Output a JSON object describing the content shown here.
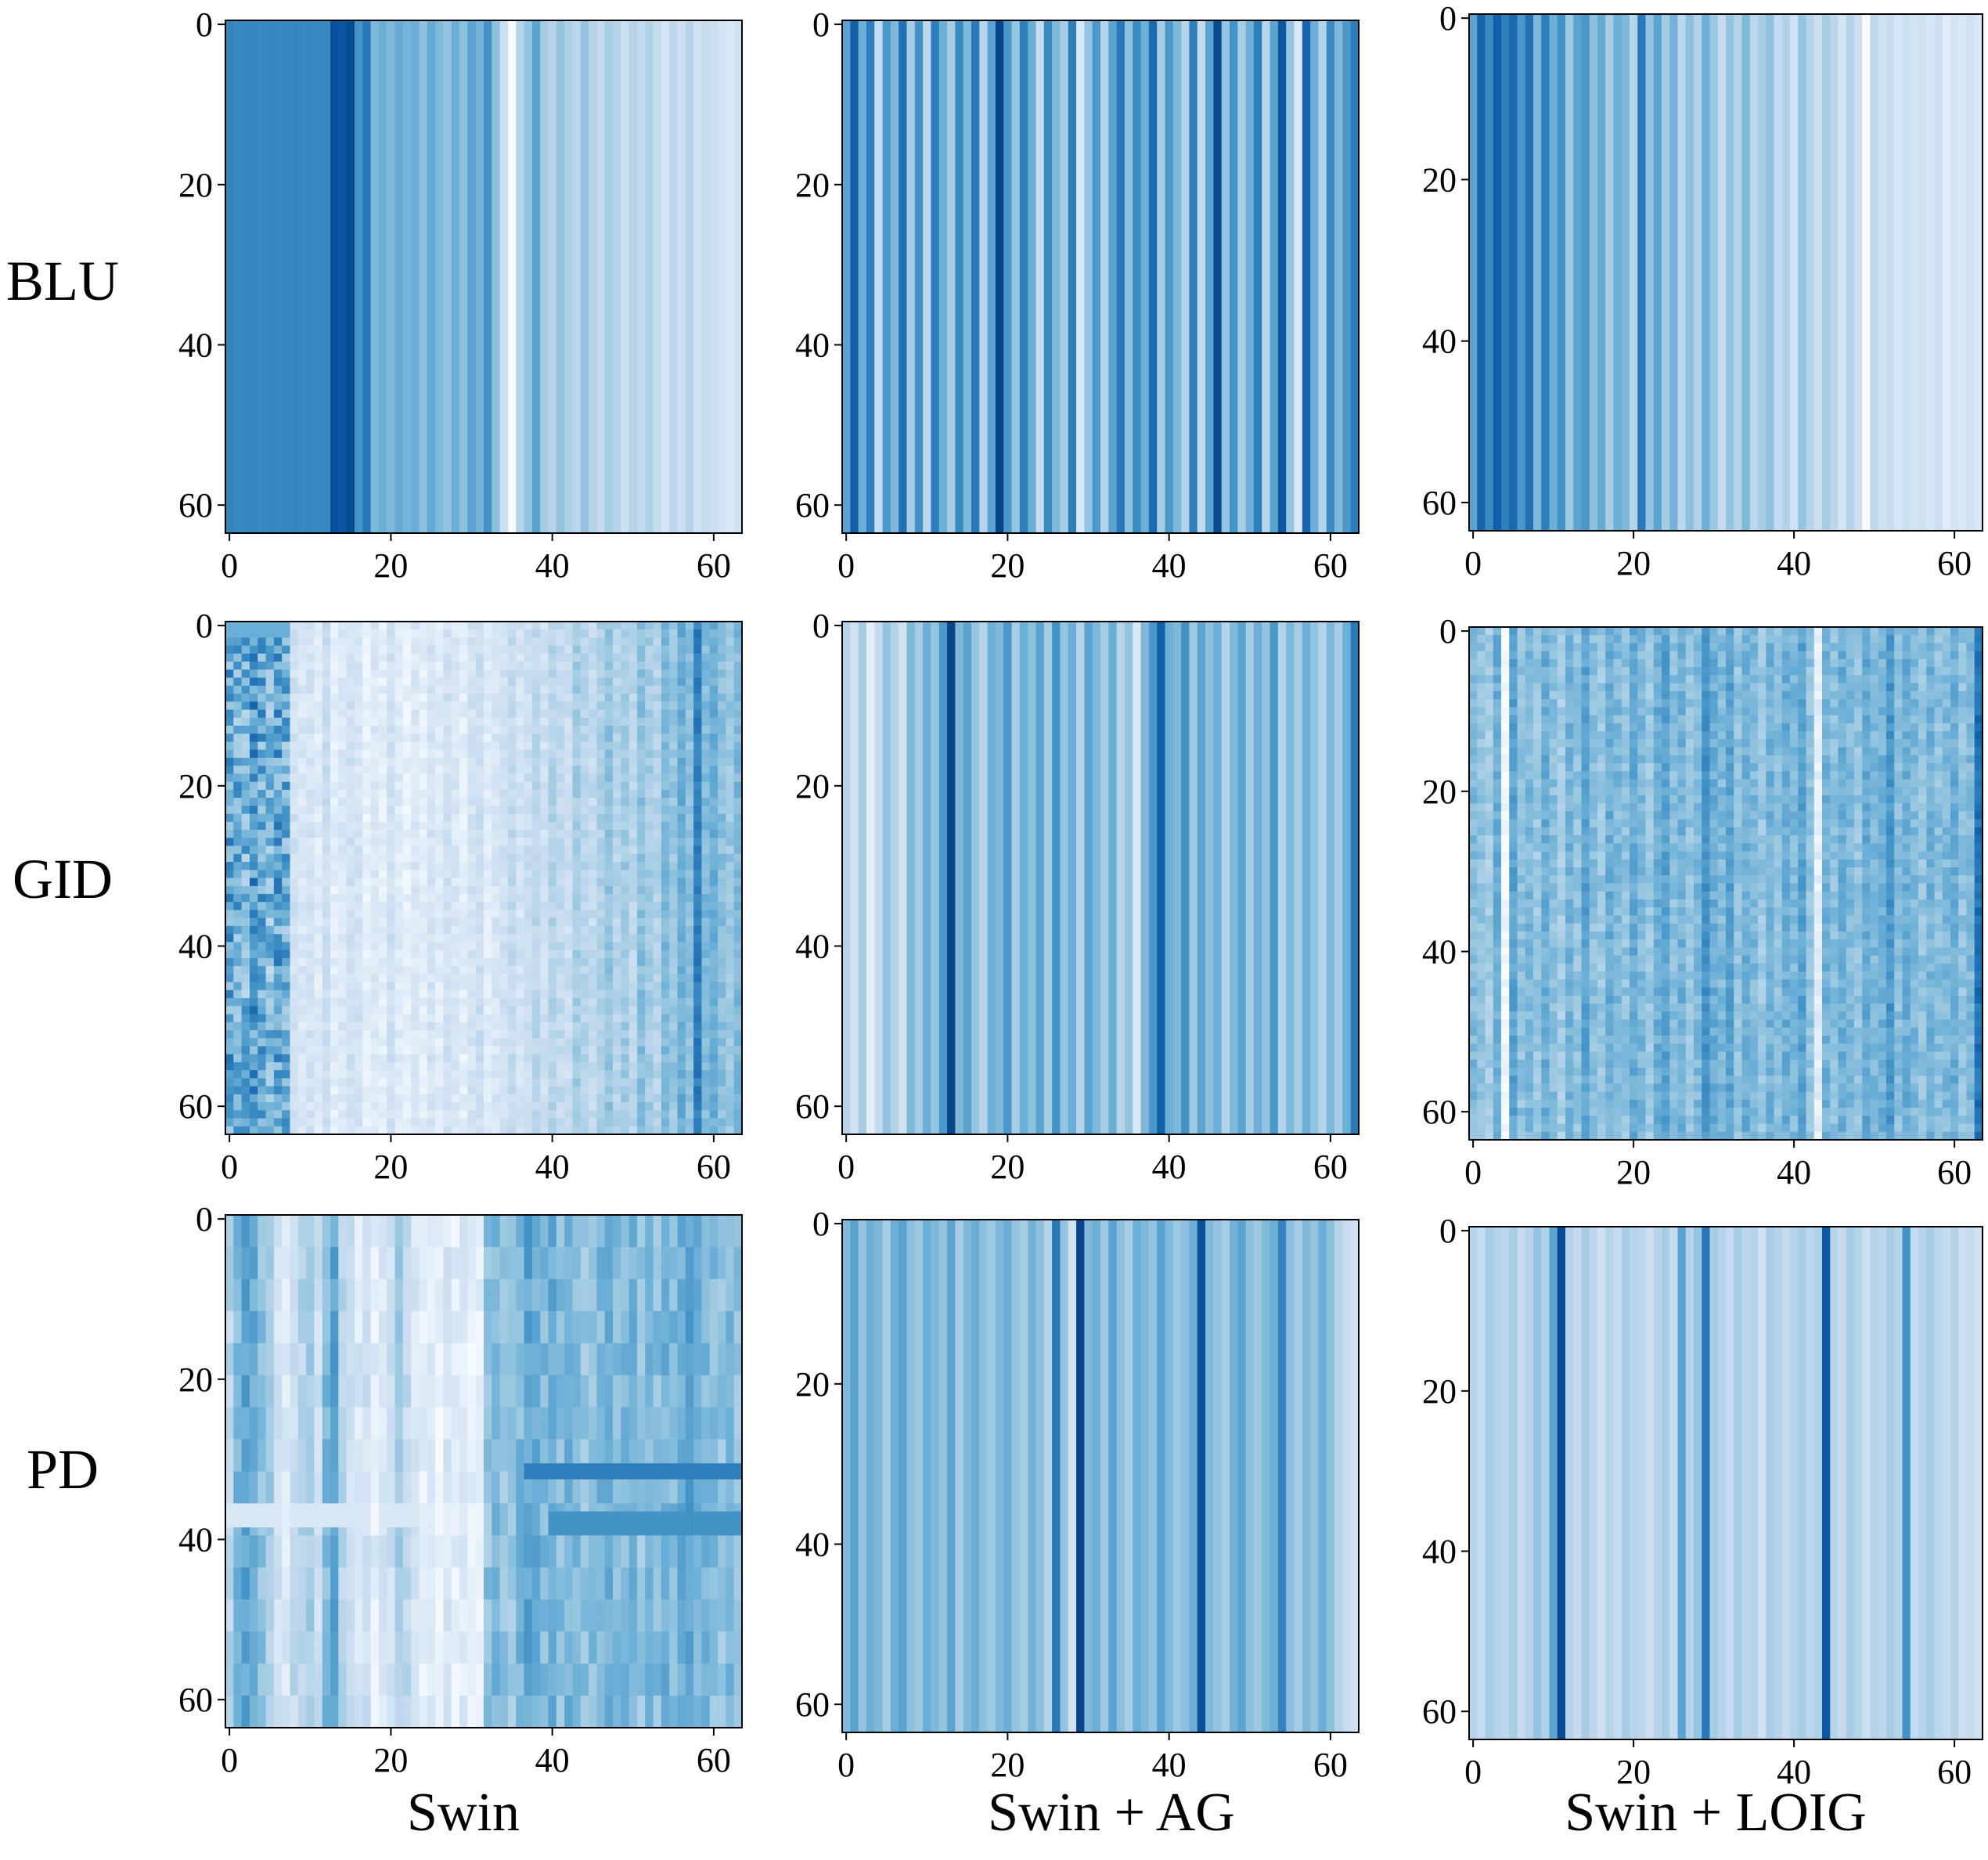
{
  "figure": {
    "row_labels": [
      "BLU",
      "GID",
      "PD"
    ],
    "col_labels": [
      "Swin",
      "Swin + AG",
      "Swin + LOIG"
    ],
    "colormap": [
      "#f7fbff",
      "#deebf7",
      "#c6dbef",
      "#9ecae1",
      "#6baed6",
      "#4292c6",
      "#2171b5",
      "#08519c",
      "#08306b"
    ]
  },
  "chart_data": [
    {
      "type": "heatmap",
      "row": "BLU",
      "col": "Swin",
      "x": {
        "range": [
          0,
          63
        ],
        "ticks": [
          "0",
          "20",
          "40",
          "60"
        ]
      },
      "y": {
        "range": [
          0,
          63
        ],
        "ticks": [
          "0",
          "20",
          "40",
          "60"
        ],
        "inverted": true
      },
      "columns": [
        0.68,
        0.66,
        0.67,
        0.67,
        0.66,
        0.67,
        0.66,
        0.67,
        0.67,
        0.66,
        0.67,
        0.66,
        0.66,
        0.88,
        0.86,
        0.9,
        0.62,
        0.72,
        0.45,
        0.5,
        0.45,
        0.52,
        0.47,
        0.5,
        0.42,
        0.52,
        0.45,
        0.4,
        0.5,
        0.42,
        0.55,
        0.48,
        0.62,
        0.42,
        0.22,
        0.0,
        0.3,
        0.4,
        0.55,
        0.35,
        0.3,
        0.4,
        0.33,
        0.28,
        0.4,
        0.3,
        0.25,
        0.35,
        0.3,
        0.22,
        0.3,
        0.26,
        0.32,
        0.24,
        0.18,
        0.28,
        0.22,
        0.3,
        0.2,
        0.25,
        0.22,
        0.18,
        0.15,
        0.2
      ],
      "pattern": "vertical"
    },
    {
      "type": "heatmap",
      "row": "BLU",
      "col": "Swin + AG",
      "x": {
        "range": [
          0,
          63
        ],
        "ticks": [
          "0",
          "20",
          "40",
          "60"
        ]
      },
      "y": {
        "range": [
          0,
          63
        ],
        "ticks": [
          "0",
          "20",
          "40",
          "60"
        ],
        "inverted": true
      },
      "columns": [
        0.55,
        0.82,
        0.5,
        0.7,
        0.25,
        0.6,
        0.45,
        0.75,
        0.35,
        0.62,
        0.28,
        0.7,
        0.5,
        0.35,
        0.65,
        0.45,
        0.72,
        0.3,
        0.55,
        0.92,
        0.6,
        0.4,
        0.7,
        0.5,
        0.25,
        0.65,
        0.45,
        0.35,
        0.7,
        0.15,
        0.4,
        0.6,
        0.3,
        0.55,
        0.72,
        0.42,
        0.65,
        0.5,
        0.78,
        0.35,
        0.6,
        0.45,
        0.3,
        0.7,
        0.25,
        0.55,
        0.9,
        0.4,
        0.62,
        0.35,
        0.5,
        0.7,
        0.3,
        0.55,
        0.85,
        0.4,
        0.15,
        0.8,
        0.5,
        0.3,
        0.65,
        0.45,
        0.6,
        0.7
      ],
      "pattern": "vertical"
    },
    {
      "type": "heatmap",
      "row": "BLU",
      "col": "Swin + LOIG",
      "x": {
        "range": [
          0,
          63
        ],
        "ticks": [
          "0",
          "20",
          "40",
          "60"
        ]
      },
      "y": {
        "range": [
          0,
          63
        ],
        "ticks": [
          "0",
          "20",
          "40",
          "60"
        ],
        "inverted": true
      },
      "columns": [
        0.55,
        0.8,
        0.65,
        0.82,
        0.7,
        0.78,
        0.6,
        0.75,
        0.45,
        0.7,
        0.5,
        0.62,
        0.38,
        0.55,
        0.6,
        0.42,
        0.52,
        0.35,
        0.5,
        0.45,
        0.3,
        0.72,
        0.4,
        0.55,
        0.35,
        0.48,
        0.28,
        0.42,
        0.32,
        0.5,
        0.38,
        0.25,
        0.4,
        0.3,
        0.45,
        0.28,
        0.35,
        0.42,
        0.25,
        0.32,
        0.2,
        0.4,
        0.3,
        0.22,
        0.35,
        0.28,
        0.18,
        0.3,
        0.22,
        0.0,
        0.28,
        0.2,
        0.24,
        0.16,
        0.22,
        0.18,
        0.2,
        0.15,
        0.22,
        0.12,
        0.18,
        0.14,
        0.2,
        0.16
      ],
      "pattern": "vertical"
    },
    {
      "type": "heatmap",
      "row": "GID",
      "col": "Swin",
      "x": {
        "range": [
          0,
          63
        ],
        "ticks": [
          "0",
          "20",
          "40",
          "60"
        ]
      },
      "y": {
        "range": [
          0,
          63
        ],
        "ticks": [
          "0",
          "20",
          "40",
          "60"
        ],
        "inverted": true
      },
      "columns": [
        0.55,
        0.5,
        0.48,
        0.6,
        0.52,
        0.45,
        0.55,
        0.5,
        0.2,
        0.15,
        0.18,
        0.12,
        0.22,
        0.1,
        0.15,
        0.2,
        0.18,
        0.08,
        0.14,
        0.1,
        0.2,
        0.12,
        0.08,
        0.15,
        0.1,
        0.18,
        0.12,
        0.2,
        0.15,
        0.1,
        0.18,
        0.22,
        0.12,
        0.16,
        0.2,
        0.25,
        0.18,
        0.22,
        0.28,
        0.2,
        0.3,
        0.26,
        0.22,
        0.35,
        0.3,
        0.25,
        0.32,
        0.4,
        0.3,
        0.36,
        0.28,
        0.42,
        0.35,
        0.3,
        0.45,
        0.38,
        0.5,
        0.42,
        0.7,
        0.45,
        0.5,
        0.42,
        0.38,
        0.45
      ],
      "pattern": "noisy-left"
    },
    {
      "type": "heatmap",
      "row": "GID",
      "col": "Swin + AG",
      "x": {
        "range": [
          0,
          63
        ],
        "ticks": [
          "0",
          "20",
          "40",
          "60"
        ]
      },
      "y": {
        "range": [
          0,
          63
        ],
        "ticks": [
          "0",
          "20",
          "40",
          "60"
        ],
        "inverted": true
      },
      "columns": [
        0.3,
        0.2,
        0.35,
        0.1,
        0.25,
        0.4,
        0.3,
        0.2,
        0.45,
        0.35,
        0.5,
        0.4,
        0.6,
        0.92,
        0.45,
        0.55,
        0.4,
        0.3,
        0.5,
        0.45,
        0.6,
        0.35,
        0.5,
        0.42,
        0.55,
        0.35,
        0.62,
        0.4,
        0.5,
        0.3,
        0.55,
        0.45,
        0.35,
        0.5,
        0.3,
        0.4,
        0.15,
        0.45,
        0.6,
        0.82,
        0.5,
        0.45,
        0.62,
        0.38,
        0.55,
        0.42,
        0.5,
        0.3,
        0.45,
        0.55,
        0.35,
        0.5,
        0.4,
        0.6,
        0.3,
        0.45,
        0.35,
        0.5,
        0.4,
        0.3,
        0.45,
        0.35,
        0.5,
        0.72
      ],
      "pattern": "vertical"
    },
    {
      "type": "heatmap",
      "row": "GID",
      "col": "Swin + LOIG",
      "x": {
        "range": [
          0,
          63
        ],
        "ticks": [
          "0",
          "20",
          "40",
          "60"
        ]
      },
      "y": {
        "range": [
          0,
          63
        ],
        "ticks": [
          "0",
          "20",
          "40",
          "60"
        ],
        "inverted": true
      },
      "columns": [
        0.45,
        0.4,
        0.35,
        0.5,
        0.02,
        0.55,
        0.4,
        0.45,
        0.38,
        0.5,
        0.42,
        0.35,
        0.48,
        0.4,
        0.55,
        0.42,
        0.38,
        0.5,
        0.45,
        0.4,
        0.52,
        0.45,
        0.38,
        0.5,
        0.55,
        0.42,
        0.48,
        0.4,
        0.45,
        0.62,
        0.5,
        0.45,
        0.55,
        0.4,
        0.5,
        0.45,
        0.38,
        0.48,
        0.42,
        0.5,
        0.45,
        0.55,
        0.4,
        0.1,
        0.48,
        0.42,
        0.5,
        0.45,
        0.4,
        0.52,
        0.45,
        0.48,
        0.6,
        0.42,
        0.5,
        0.45,
        0.4,
        0.48,
        0.42,
        0.45,
        0.5,
        0.4,
        0.45,
        0.75
      ],
      "pattern": "noisy"
    },
    {
      "type": "heatmap",
      "row": "PD",
      "col": "Swin",
      "x": {
        "range": [
          0,
          63
        ],
        "ticks": [
          "0",
          "20",
          "40",
          "60"
        ]
      },
      "y": {
        "range": [
          0,
          63
        ],
        "ticks": [
          "0",
          "20",
          "40",
          "60"
        ],
        "inverted": true
      },
      "columns": [
        0.3,
        0.45,
        0.55,
        0.5,
        0.4,
        0.35,
        0.2,
        0.15,
        0.25,
        0.3,
        0.35,
        0.2,
        0.45,
        0.55,
        0.3,
        0.2,
        0.15,
        0.2,
        0.1,
        0.15,
        0.2,
        0.35,
        0.25,
        0.15,
        0.1,
        0.12,
        0.08,
        0.15,
        0.1,
        0.12,
        0.08,
        0.1,
        0.4,
        0.45,
        0.4,
        0.38,
        0.45,
        0.55,
        0.5,
        0.45,
        0.5,
        0.42,
        0.48,
        0.45,
        0.4,
        0.42,
        0.45,
        0.5,
        0.42,
        0.45,
        0.48,
        0.4,
        0.45,
        0.42,
        0.48,
        0.45,
        0.5,
        0.55,
        0.48,
        0.45,
        0.42,
        0.4,
        0.45,
        0.42
      ],
      "pattern": "blocky"
    },
    {
      "type": "heatmap",
      "row": "PD",
      "col": "Swin + AG",
      "x": {
        "range": [
          0,
          63
        ],
        "ticks": [
          "0",
          "20",
          "40",
          "60"
        ]
      },
      "y": {
        "range": [
          0,
          63
        ],
        "ticks": [
          "0",
          "20",
          "40",
          "60"
        ],
        "inverted": true
      },
      "columns": [
        0.45,
        0.55,
        0.4,
        0.5,
        0.45,
        0.35,
        0.5,
        0.55,
        0.42,
        0.38,
        0.5,
        0.45,
        0.4,
        0.55,
        0.35,
        0.45,
        0.5,
        0.42,
        0.38,
        0.45,
        0.5,
        0.4,
        0.35,
        0.48,
        0.42,
        0.3,
        0.72,
        0.4,
        0.2,
        0.92,
        0.45,
        0.5,
        0.38,
        0.55,
        0.42,
        0.35,
        0.5,
        0.45,
        0.4,
        0.55,
        0.45,
        0.38,
        0.42,
        0.5,
        0.88,
        0.45,
        0.4,
        0.35,
        0.48,
        0.55,
        0.42,
        0.38,
        0.45,
        0.5,
        0.68,
        0.42,
        0.35,
        0.45,
        0.4,
        0.5,
        0.42,
        0.3,
        0.25,
        0.2
      ],
      "pattern": "vertical"
    },
    {
      "type": "heatmap",
      "row": "PD",
      "col": "Swin + LOIG",
      "x": {
        "range": [
          0,
          63
        ],
        "ticks": [
          "0",
          "20",
          "40",
          "60"
        ]
      },
      "y": {
        "range": [
          0,
          63
        ],
        "ticks": [
          "0",
          "20",
          "40",
          "60"
        ],
        "inverted": true
      },
      "columns": [
        0.3,
        0.25,
        0.35,
        0.3,
        0.28,
        0.35,
        0.25,
        0.3,
        0.4,
        0.32,
        0.55,
        0.9,
        0.3,
        0.25,
        0.35,
        0.28,
        0.2,
        0.3,
        0.25,
        0.35,
        0.3,
        0.28,
        0.22,
        0.3,
        0.35,
        0.25,
        0.55,
        0.3,
        0.4,
        0.72,
        0.35,
        0.3,
        0.25,
        0.35,
        0.28,
        0.3,
        0.2,
        0.35,
        0.3,
        0.25,
        0.3,
        0.35,
        0.28,
        0.32,
        0.85,
        0.3,
        0.25,
        0.35,
        0.3,
        0.22,
        0.3,
        0.28,
        0.35,
        0.3,
        0.62,
        0.25,
        0.3,
        0.35,
        0.28,
        0.25,
        0.3,
        0.22,
        0.25,
        0.2
      ],
      "pattern": "vertical"
    }
  ]
}
